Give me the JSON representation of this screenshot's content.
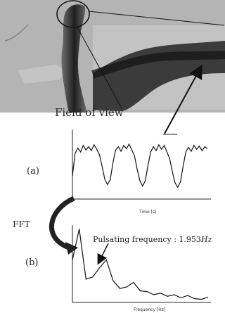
{
  "figure": {
    "field_of_view_label": "Field of view",
    "panel_a_label": "(a)",
    "panel_b_label": "(b)",
    "fft_label": "FFT",
    "pulsating_annotation": "Pulsating frequency : 1.953",
    "pulsating_unit": "Hz",
    "xlabel_time": "Time [s]",
    "xlabel_frequency": "Frequency [Hz]"
  },
  "chart_data": [
    {
      "type": "line",
      "title": "",
      "xlabel": "Time [s]",
      "ylabel": "",
      "series": [
        {
          "x": [
            0,
            0.02,
            0.04,
            0.06,
            0.08,
            0.1,
            0.12,
            0.14,
            0.16,
            0.18,
            0.2,
            0.22,
            0.24,
            0.26,
            0.28,
            0.3,
            0.32,
            0.34,
            0.36,
            0.38,
            0.4,
            0.42,
            0.44,
            0.46,
            0.48,
            0.5,
            0.52,
            0.54,
            0.56,
            0.58,
            0.6,
            0.62,
            0.64,
            0.66,
            0.68,
            0.7,
            0.72,
            0.74,
            0.76,
            0.78,
            0.8,
            0.82,
            0.84,
            0.86,
            0.88,
            0.9,
            0.92,
            0.94,
            0.96,
            0.98,
            1.0
          ],
          "y": [
            0.35,
            0.7,
            0.78,
            0.72,
            0.82,
            0.75,
            0.8,
            0.74,
            0.83,
            0.76,
            0.68,
            0.5,
            0.3,
            0.22,
            0.3,
            0.55,
            0.75,
            0.8,
            0.73,
            0.82,
            0.77,
            0.84,
            0.75,
            0.66,
            0.45,
            0.28,
            0.2,
            0.28,
            0.52,
            0.72,
            0.8,
            0.74,
            0.83,
            0.76,
            0.82,
            0.72,
            0.62,
            0.42,
            0.25,
            0.18,
            0.26,
            0.5,
            0.72,
            0.79,
            0.73,
            0.82,
            0.76,
            0.81,
            0.74,
            0.8,
            0.77
          ]
        }
      ]
    },
    {
      "type": "line",
      "title": "",
      "xlabel": "Frequency [Hz]",
      "ylabel": "",
      "series": [
        {
          "x": [
            0,
            0.05,
            0.1,
            0.15,
            0.2,
            0.25,
            0.3,
            0.35,
            0.4,
            0.45,
            0.5,
            0.55,
            0.6,
            0.65,
            0.7,
            0.75,
            0.8,
            0.85,
            0.9,
            0.95,
            1.0
          ],
          "y": [
            0.55,
            0.95,
            0.3,
            0.33,
            0.45,
            0.55,
            0.28,
            0.18,
            0.2,
            0.26,
            0.15,
            0.14,
            0.1,
            0.12,
            0.08,
            0.1,
            0.06,
            0.09,
            0.05,
            0.04,
            0.07
          ]
        }
      ]
    }
  ]
}
